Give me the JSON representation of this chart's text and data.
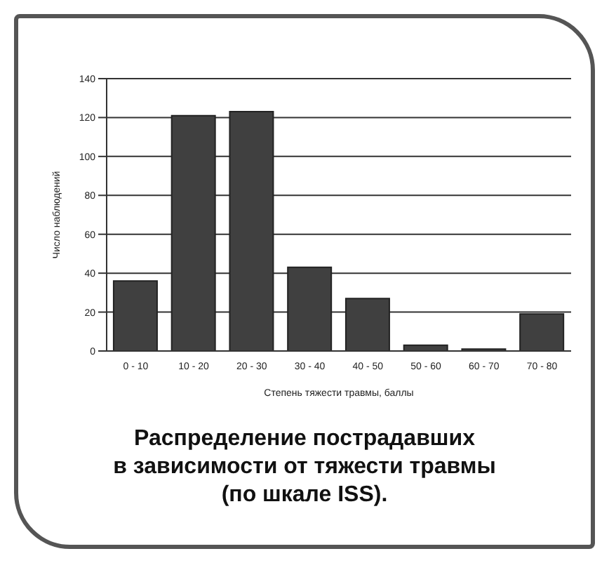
{
  "chart_data": {
    "type": "bar",
    "title": "Распределение пострадавших\nв зависимости от тяжести травмы\n(по шкале ISS).",
    "xlabel": "Степень тяжести травмы, баллы",
    "ylabel": "Число наблюдений",
    "categories": [
      "0 - 10",
      "10 - 20",
      "20 - 30",
      "30 - 40",
      "40 - 50",
      "50 - 60",
      "60 - 70",
      "70 - 80"
    ],
    "values": [
      36,
      121,
      123,
      43,
      27,
      3,
      1,
      19
    ],
    "color": "#404040",
    "ylim": [
      0,
      140
    ],
    "yticks": [
      0,
      20,
      40,
      60,
      80,
      100,
      120,
      140
    ],
    "grid": "y"
  }
}
